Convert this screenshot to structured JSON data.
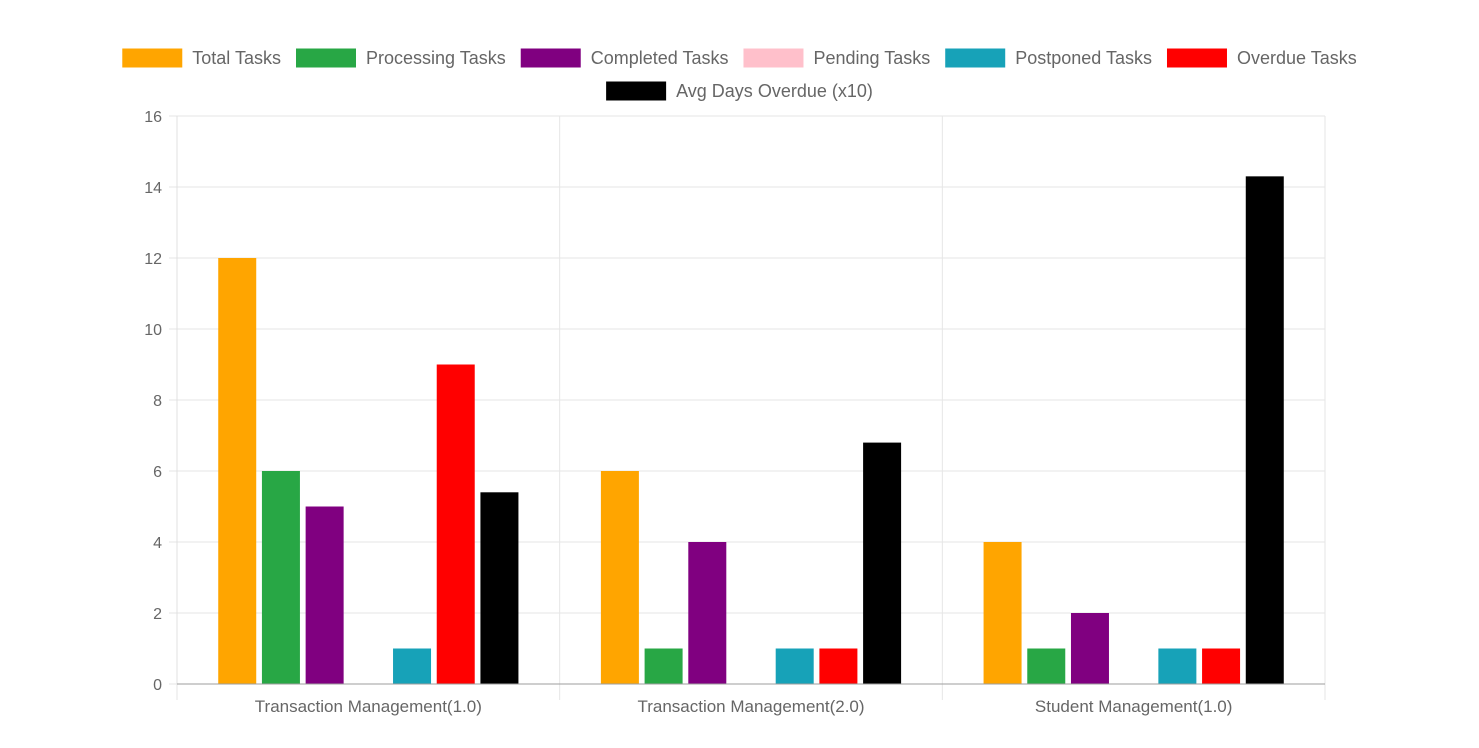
{
  "chart_data": {
    "type": "bar",
    "title": "",
    "xlabel": "",
    "ylabel": "",
    "categories": [
      "Transaction Management(1.0)",
      "Transaction Management(2.0)",
      "Student Management(1.0)"
    ],
    "series": [
      {
        "name": "Total Tasks",
        "color": "#FFA500",
        "values": [
          12,
          6,
          4
        ]
      },
      {
        "name": "Processing Tasks",
        "color": "#28A745",
        "values": [
          6,
          1,
          1
        ]
      },
      {
        "name": "Completed Tasks",
        "color": "#800080",
        "values": [
          5,
          4,
          2
        ]
      },
      {
        "name": "Pending Tasks",
        "color": "#FFC0CB",
        "values": [
          0,
          0,
          0
        ]
      },
      {
        "name": "Postponed Tasks",
        "color": "#17A2B8",
        "values": [
          1,
          1,
          1
        ]
      },
      {
        "name": "Overdue Tasks",
        "color": "#FF0000",
        "values": [
          9,
          1,
          1
        ]
      },
      {
        "name": "Avg Days Overdue (x10)",
        "color": "#000000",
        "values": [
          5.4,
          6.8,
          14.3
        ]
      }
    ],
    "ylim": [
      0,
      16
    ],
    "yticks": [
      "0",
      "2",
      "4",
      "6",
      "8",
      "10",
      "12",
      "14",
      "16"
    ],
    "grid": true,
    "legend_position": "top"
  }
}
